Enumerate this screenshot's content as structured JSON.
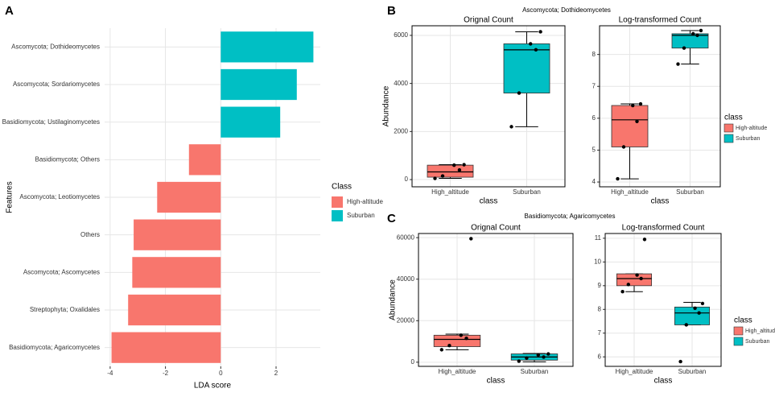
{
  "panels": [
    {
      "label": "A"
    },
    {
      "label": "B",
      "title": "Ascomycota; Dothideomycetes",
      "legend": {
        "title": "class",
        "entries": [
          "High-altitude",
          "Suburban"
        ],
        "colors": [
          "#f8766d",
          "#00bfc4"
        ]
      }
    },
    {
      "label": "C",
      "title": "Basidiomycota; Agaricomycetes",
      "legend": {
        "title": "class",
        "entries": [
          "High_altitude",
          "Suburban"
        ],
        "colors": [
          "#f8766d",
          "#00bfc4"
        ]
      }
    }
  ],
  "chart_data": [
    {
      "type": "bar",
      "orientation": "horizontal",
      "xlabel": "LDA score",
      "ylabel": "Features",
      "legend_title": "Class",
      "grid": true,
      "categories": [
        "Ascomycota; Dothideomycetes",
        "Ascomycota; Sordariomycetes",
        "Basidiomycota; Ustilaginomycetes",
        "Basidiomycota; Others",
        "Ascomycota; Leotiomycetes",
        "Others",
        "Ascomycota; Ascomycetes",
        "Streptophyta; Oxalidales",
        "Basidiomycota; Agaricomycetes"
      ],
      "series": [
        {
          "name": "High-altitude",
          "color": "#f8766d",
          "values": [
            null,
            null,
            null,
            -1.15,
            -2.3,
            -3.15,
            -3.2,
            -3.35,
            -3.95
          ]
        },
        {
          "name": "Suburban",
          "color": "#00bfc4",
          "values": [
            3.35,
            2.75,
            2.15,
            null,
            null,
            null,
            null,
            null,
            null
          ]
        }
      ],
      "xlim": [
        -4.2,
        3.6
      ],
      "xticks": [
        -4,
        -2,
        0,
        2
      ]
    },
    {
      "type": "box",
      "title": "Orignal Count",
      "xlabel": "class",
      "ylabel": "Abundance",
      "categories": [
        "High_altitude",
        "Suburban"
      ],
      "colors": [
        "#f8766d",
        "#00bfc4"
      ],
      "ylim": [
        -300,
        6400
      ],
      "yticks": [
        0,
        2000,
        4000,
        6000
      ],
      "boxes": [
        {
          "whisker_low": 50,
          "q1": 100,
          "median": 320,
          "q3": 600,
          "whisker_high": 620,
          "points": [
            620,
            600,
            400,
            150,
            50
          ]
        },
        {
          "whisker_low": 2200,
          "q1": 3600,
          "median": 5400,
          "q3": 5650,
          "whisker_high": 6150,
          "points": [
            6150,
            5650,
            5400,
            3600,
            2200
          ]
        }
      ]
    },
    {
      "type": "box",
      "title": "Log-transformed Count",
      "xlabel": "class",
      "categories": [
        "High_altitude",
        "Suburban"
      ],
      "colors": [
        "#f8766d",
        "#00bfc4"
      ],
      "ylim": [
        3.85,
        8.9
      ],
      "yticks": [
        4,
        5,
        6,
        7,
        8
      ],
      "boxes": [
        {
          "whisker_low": 4.1,
          "q1": 5.1,
          "median": 5.95,
          "q3": 6.4,
          "whisker_high": 6.45,
          "points": [
            6.45,
            6.4,
            5.9,
            5.1,
            4.1
          ]
        },
        {
          "whisker_low": 7.7,
          "q1": 8.2,
          "median": 8.6,
          "q3": 8.65,
          "whisker_high": 8.75,
          "points": [
            8.75,
            8.65,
            8.6,
            8.2,
            7.7
          ]
        }
      ]
    },
    {
      "type": "box",
      "title": "Orignal Count",
      "xlabel": "class",
      "ylabel": "Abundance",
      "categories": [
        "High_altitude",
        "Suburban"
      ],
      "colors": [
        "#f8766d",
        "#00bfc4"
      ],
      "ylim": [
        -2000,
        62000
      ],
      "yticks": [
        0,
        20000,
        40000,
        60000
      ],
      "boxes": [
        {
          "whisker_low": 6000,
          "q1": 7500,
          "median": 11000,
          "q3": 13000,
          "whisker_high": 13500,
          "points": [
            59500,
            13000,
            11500,
            8000,
            6000
          ]
        },
        {
          "whisker_low": 200,
          "q1": 1000,
          "median": 2500,
          "q3": 4000,
          "whisker_high": 4200,
          "points": [
            4000,
            3500,
            2500,
            2000,
            500
          ]
        }
      ]
    },
    {
      "type": "box",
      "title": "Log-transformed Count",
      "xlabel": "class",
      "categories": [
        "High_altitude",
        "Suburban"
      ],
      "colors": [
        "#f8766d",
        "#00bfc4"
      ],
      "ylim": [
        5.6,
        11.2
      ],
      "yticks": [
        6,
        7,
        8,
        9,
        10,
        11
      ],
      "boxes": [
        {
          "whisker_low": 8.75,
          "q1": 9.0,
          "median": 9.3,
          "q3": 9.5,
          "whisker_high": 9.5,
          "points": [
            10.95,
            9.45,
            9.3,
            9.05,
            8.75
          ]
        },
        {
          "whisker_low": 7.35,
          "q1": 7.35,
          "median": 7.85,
          "q3": 8.1,
          "whisker_high": 8.3,
          "points": [
            8.25,
            8.05,
            7.85,
            7.35,
            5.8
          ]
        }
      ]
    }
  ]
}
